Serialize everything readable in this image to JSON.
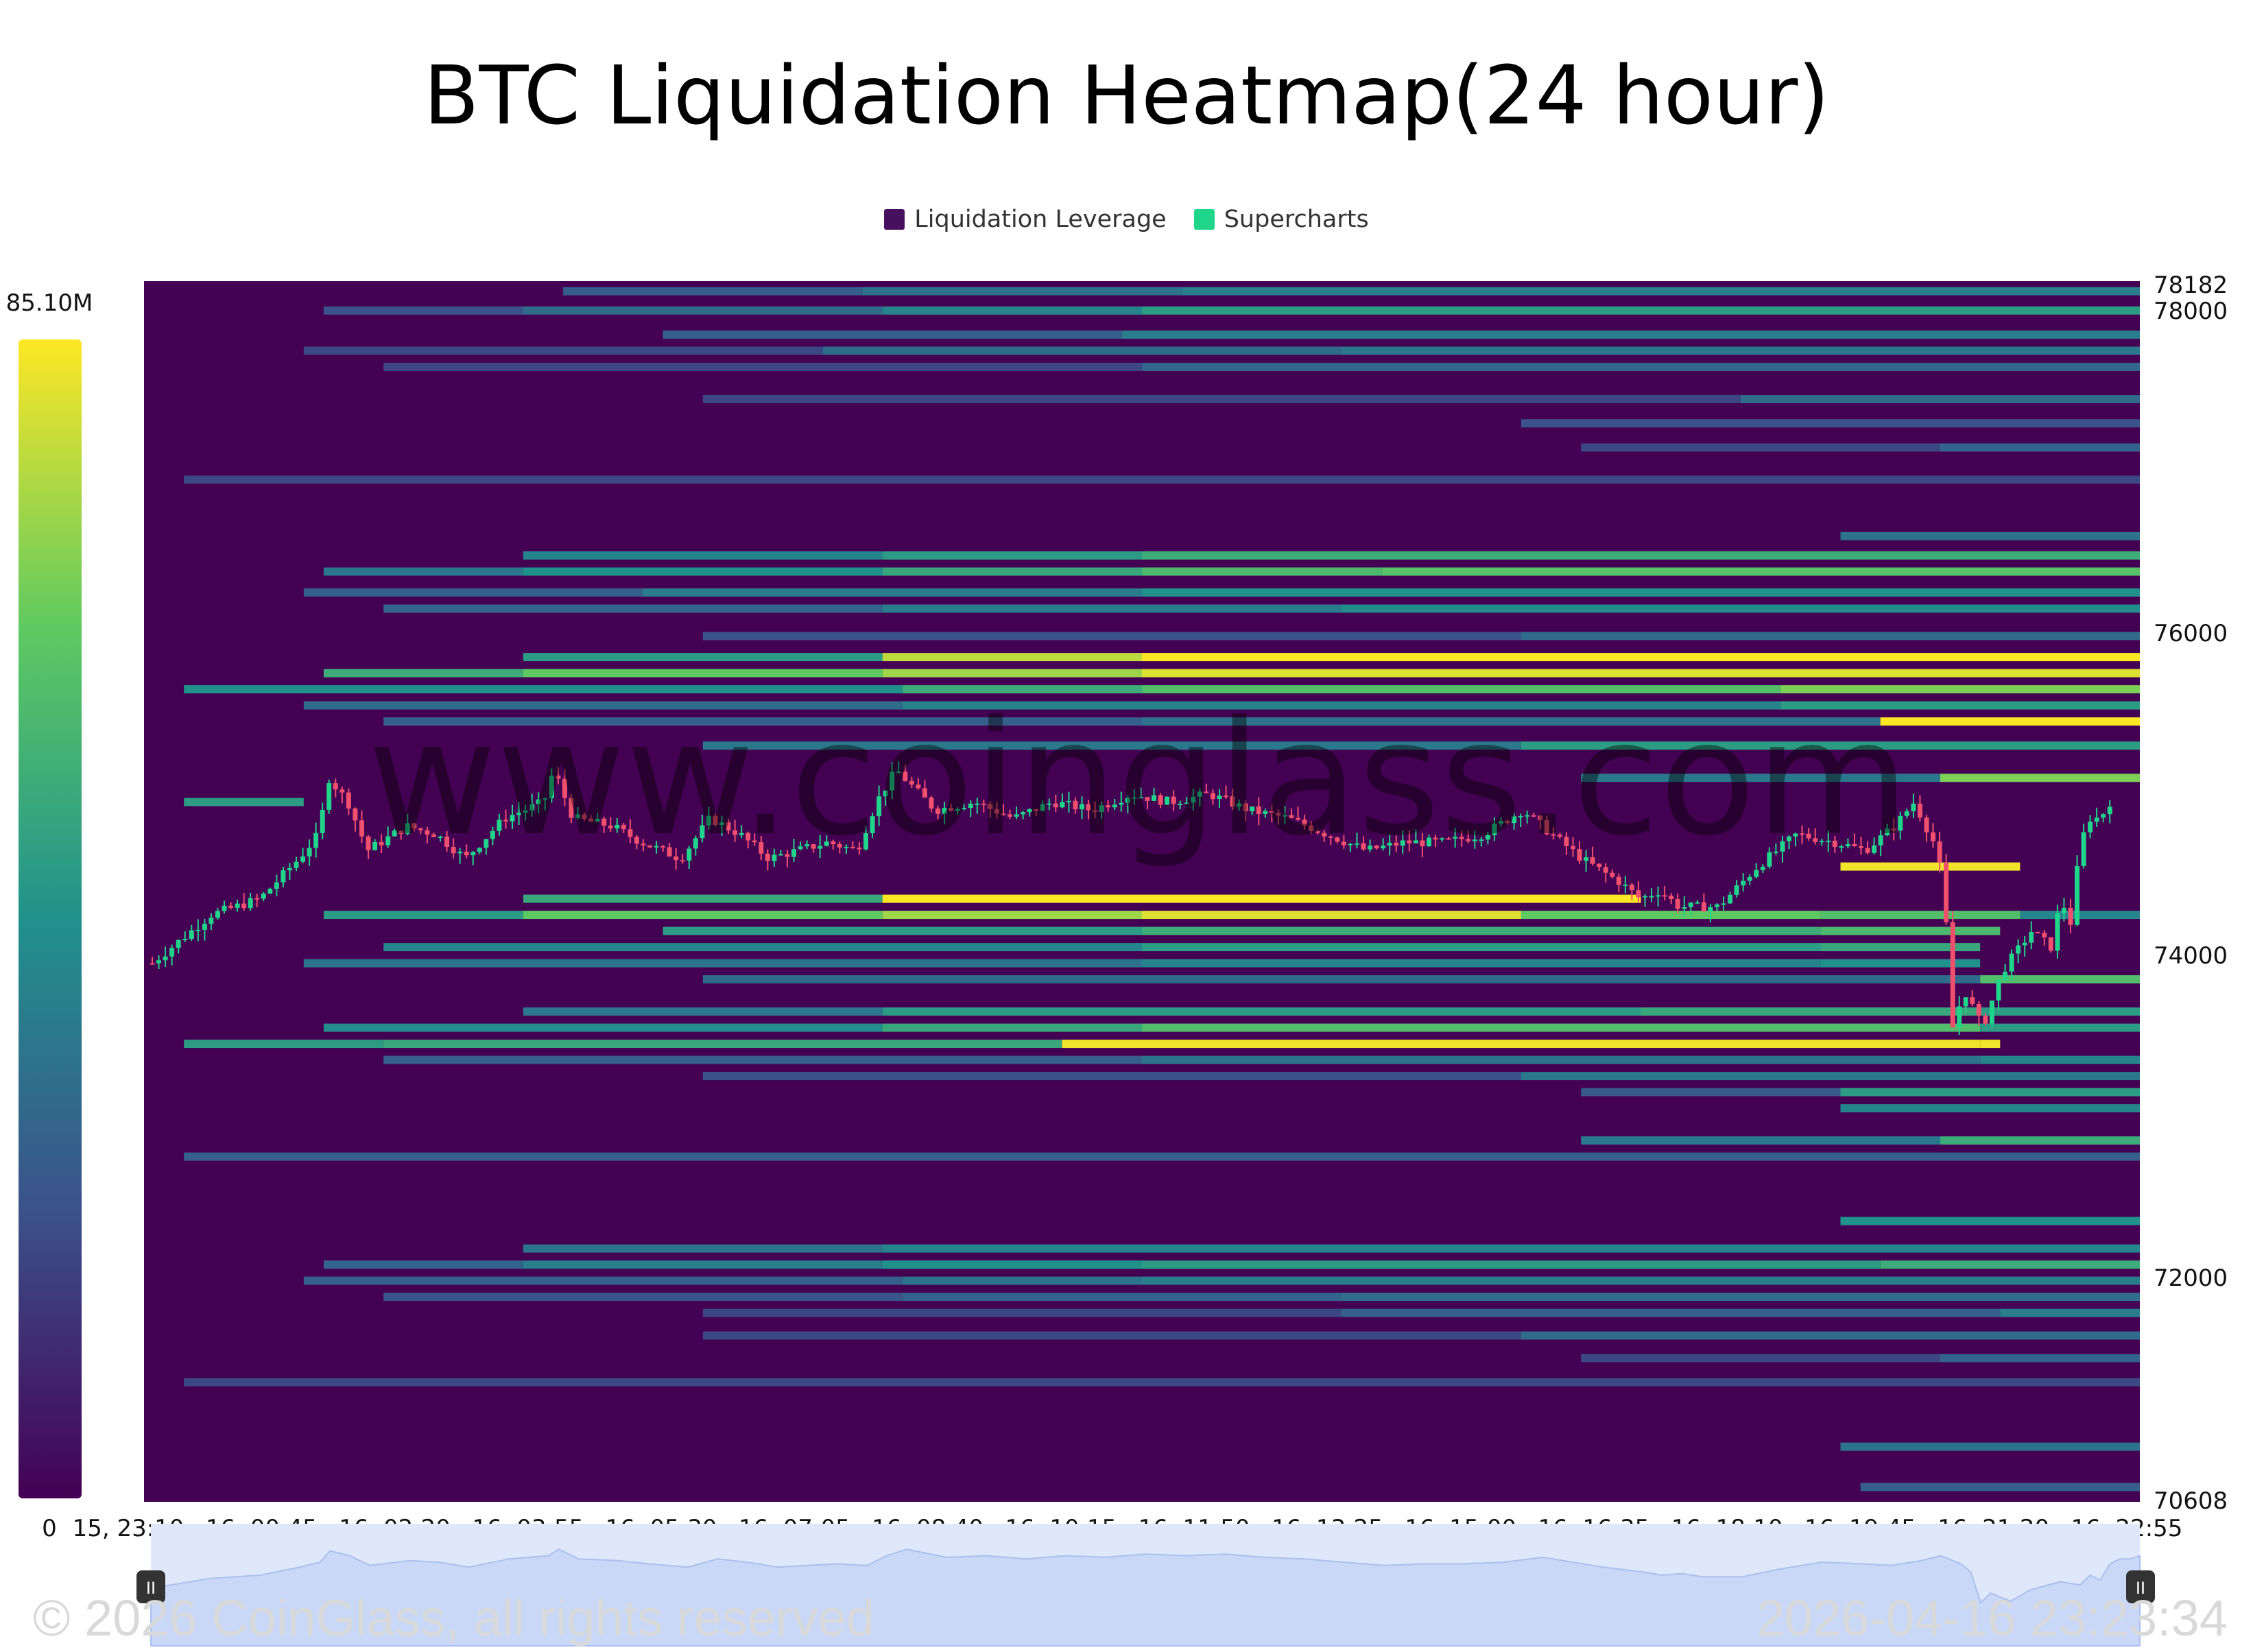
{
  "chart_data": {
    "type": "heatmap",
    "title": "BTC Liquidation Heatmap(24 hour)",
    "legend": [
      {
        "label": "Liquidation Leverage",
        "color": "#46105f"
      },
      {
        "label": "Supercharts",
        "color": "#1fd58a"
      }
    ],
    "colorscale": {
      "min_label": "0",
      "max_label": "85.10M",
      "min": 0,
      "max": 85.1,
      "colors": [
        "#440154",
        "#3b528b",
        "#21918c",
        "#5ec962",
        "#fde725"
      ]
    },
    "y_axis": {
      "min": 70608,
      "max": 78182,
      "tick_labels": [
        "78182",
        "78000",
        "76000",
        "74000",
        "72000",
        "70608"
      ],
      "tick_values": [
        78182,
        78000,
        76000,
        74000,
        72000,
        70608
      ]
    },
    "x_axis": {
      "tick_labels": [
        "15, 23:10",
        "16, 00:45",
        "16, 02:20",
        "16, 03:55",
        "16, 05:30",
        "16, 07:05",
        "16, 08:40",
        "16, 10:15",
        "16, 11:50",
        "16, 13:25",
        "16, 15:00",
        "16, 16:35",
        "16, 18:10",
        "16, 19:45",
        "16, 21:20",
        "16, 22:55"
      ],
      "range": [
        "15, 23:10",
        "16, 23:23"
      ]
    },
    "bands": [
      {
        "price": 78120,
        "intensity": [
          [
            0.21,
            0.36,
            0.3
          ],
          [
            0.36,
            0.52,
            0.38
          ],
          [
            0.52,
            1.0,
            0.42
          ]
        ]
      },
      {
        "price": 78000,
        "intensity": [
          [
            0.09,
            0.19,
            0.25
          ],
          [
            0.19,
            0.37,
            0.35
          ],
          [
            0.37,
            0.5,
            0.45
          ],
          [
            0.5,
            1.0,
            0.55
          ]
        ]
      },
      {
        "price": 77850,
        "intensity": [
          [
            0.26,
            0.49,
            0.3
          ],
          [
            0.49,
            1.0,
            0.42
          ]
        ]
      },
      {
        "price": 77750,
        "intensity": [
          [
            0.08,
            0.34,
            0.22
          ],
          [
            0.34,
            0.6,
            0.35
          ],
          [
            0.6,
            1.0,
            0.4
          ]
        ]
      },
      {
        "price": 77650,
        "intensity": [
          [
            0.12,
            0.5,
            0.22
          ],
          [
            0.5,
            1.0,
            0.33
          ]
        ]
      },
      {
        "price": 77450,
        "intensity": [
          [
            0.28,
            0.8,
            0.22
          ],
          [
            0.8,
            1.0,
            0.35
          ]
        ]
      },
      {
        "price": 77300,
        "intensity": [
          [
            0.69,
            1.0,
            0.25
          ]
        ]
      },
      {
        "price": 77150,
        "intensity": [
          [
            0.72,
            0.9,
            0.22
          ],
          [
            0.9,
            1.0,
            0.32
          ]
        ]
      },
      {
        "price": 76950,
        "intensity": [
          [
            0.02,
            1.0,
            0.22
          ]
        ]
      },
      {
        "price": 76600,
        "intensity": [
          [
            0.85,
            1.0,
            0.38
          ]
        ]
      },
      {
        "price": 76480,
        "intensity": [
          [
            0.19,
            0.37,
            0.45
          ],
          [
            0.37,
            0.5,
            0.55
          ],
          [
            0.5,
            1.0,
            0.62
          ]
        ]
      },
      {
        "price": 76380,
        "intensity": [
          [
            0.09,
            0.19,
            0.4
          ],
          [
            0.19,
            0.37,
            0.5
          ],
          [
            0.37,
            0.5,
            0.6
          ],
          [
            0.5,
            0.62,
            0.68
          ],
          [
            0.62,
            1.0,
            0.72
          ]
        ]
      },
      {
        "price": 76250,
        "intensity": [
          [
            0.08,
            0.25,
            0.3
          ],
          [
            0.25,
            0.5,
            0.42
          ],
          [
            0.5,
            1.0,
            0.5
          ]
        ]
      },
      {
        "price": 76150,
        "intensity": [
          [
            0.12,
            0.37,
            0.32
          ],
          [
            0.37,
            0.6,
            0.42
          ],
          [
            0.6,
            1.0,
            0.48
          ]
        ]
      },
      {
        "price": 75980,
        "intensity": [
          [
            0.28,
            0.69,
            0.25
          ],
          [
            0.69,
            1.0,
            0.35
          ]
        ]
      },
      {
        "price": 75850,
        "intensity": [
          [
            0.19,
            0.37,
            0.55
          ],
          [
            0.37,
            0.5,
            0.9
          ],
          [
            0.5,
            0.75,
            1.0
          ],
          [
            0.75,
            1.0,
            1.0
          ]
        ]
      },
      {
        "price": 75750,
        "intensity": [
          [
            0.09,
            0.19,
            0.62
          ],
          [
            0.19,
            0.37,
            0.75
          ],
          [
            0.37,
            0.5,
            0.85
          ],
          [
            0.5,
            1.0,
            0.95
          ]
        ]
      },
      {
        "price": 75650,
        "intensity": [
          [
            0.02,
            0.38,
            0.5
          ],
          [
            0.38,
            0.5,
            0.62
          ],
          [
            0.5,
            0.82,
            0.7
          ],
          [
            0.82,
            1.0,
            0.8
          ]
        ]
      },
      {
        "price": 75550,
        "intensity": [
          [
            0.08,
            0.38,
            0.35
          ],
          [
            0.38,
            0.82,
            0.45
          ],
          [
            0.82,
            1.0,
            0.55
          ]
        ]
      },
      {
        "price": 75450,
        "intensity": [
          [
            0.12,
            0.5,
            0.3
          ],
          [
            0.5,
            0.87,
            0.38
          ],
          [
            0.87,
            1.0,
            1.0
          ]
        ]
      },
      {
        "price": 75300,
        "intensity": [
          [
            0.28,
            0.69,
            0.4
          ],
          [
            0.69,
            1.0,
            0.55
          ]
        ]
      },
      {
        "price": 75100,
        "intensity": [
          [
            0.72,
            0.9,
            0.4
          ],
          [
            0.9,
            1.0,
            0.8
          ]
        ]
      },
      {
        "price": 74950,
        "intensity": [
          [
            0.02,
            0.08,
            0.55
          ]
        ]
      },
      {
        "price": 74550,
        "intensity": [
          [
            0.85,
            0.94,
            0.98
          ]
        ]
      },
      {
        "price": 74350,
        "intensity": [
          [
            0.19,
            0.37,
            0.6
          ],
          [
            0.37,
            0.75,
            1.0
          ]
        ]
      },
      {
        "price": 74250,
        "intensity": [
          [
            0.09,
            0.19,
            0.55
          ],
          [
            0.19,
            0.37,
            0.75
          ],
          [
            0.37,
            0.5,
            0.85
          ],
          [
            0.5,
            0.69,
            0.95
          ],
          [
            0.69,
            0.84,
            0.75
          ],
          [
            0.84,
            0.94,
            0.7
          ],
          [
            0.94,
            1.0,
            0.45
          ]
        ]
      },
      {
        "price": 74150,
        "intensity": [
          [
            0.26,
            0.5,
            0.55
          ],
          [
            0.5,
            0.84,
            0.62
          ],
          [
            0.84,
            0.93,
            0.68
          ]
        ]
      },
      {
        "price": 74050,
        "intensity": [
          [
            0.12,
            0.5,
            0.45
          ],
          [
            0.5,
            0.84,
            0.55
          ],
          [
            0.84,
            0.92,
            0.6
          ]
        ]
      },
      {
        "price": 73950,
        "intensity": [
          [
            0.08,
            0.5,
            0.38
          ],
          [
            0.5,
            0.84,
            0.45
          ],
          [
            0.84,
            0.92,
            0.5
          ]
        ]
      },
      {
        "price": 73850,
        "intensity": [
          [
            0.28,
            0.92,
            0.35
          ],
          [
            0.92,
            1.0,
            0.7
          ]
        ]
      },
      {
        "price": 73650,
        "intensity": [
          [
            0.19,
            0.37,
            0.4
          ],
          [
            0.37,
            0.75,
            0.55
          ],
          [
            0.75,
            0.92,
            0.6
          ],
          [
            0.92,
            1.0,
            0.55
          ]
        ]
      },
      {
        "price": 73550,
        "intensity": [
          [
            0.09,
            0.37,
            0.48
          ],
          [
            0.37,
            0.5,
            0.6
          ],
          [
            0.5,
            0.92,
            0.7
          ],
          [
            0.92,
            1.0,
            0.55
          ]
        ]
      },
      {
        "price": 73450,
        "intensity": [
          [
            0.02,
            0.12,
            0.55
          ],
          [
            0.12,
            0.46,
            0.6
          ],
          [
            0.46,
            0.92,
            0.98
          ],
          [
            0.92,
            0.93,
            0.98
          ]
        ]
      },
      {
        "price": 73350,
        "intensity": [
          [
            0.12,
            0.5,
            0.3
          ],
          [
            0.5,
            0.92,
            0.38
          ],
          [
            0.92,
            1.0,
            0.45
          ]
        ]
      },
      {
        "price": 73250,
        "intensity": [
          [
            0.28,
            0.69,
            0.25
          ],
          [
            0.69,
            1.0,
            0.4
          ]
        ]
      },
      {
        "price": 73150,
        "intensity": [
          [
            0.72,
            0.85,
            0.28
          ],
          [
            0.85,
            1.0,
            0.55
          ]
        ]
      },
      {
        "price": 73050,
        "intensity": [
          [
            0.85,
            1.0,
            0.45
          ]
        ]
      },
      {
        "price": 72850,
        "intensity": [
          [
            0.72,
            0.9,
            0.4
          ],
          [
            0.9,
            1.0,
            0.62
          ]
        ]
      },
      {
        "price": 72750,
        "intensity": [
          [
            0.02,
            1.0,
            0.3
          ]
        ]
      },
      {
        "price": 72350,
        "intensity": [
          [
            0.85,
            1.0,
            0.5
          ]
        ]
      },
      {
        "price": 72180,
        "intensity": [
          [
            0.19,
            0.37,
            0.38
          ],
          [
            0.37,
            1.0,
            0.45
          ]
        ]
      },
      {
        "price": 72080,
        "intensity": [
          [
            0.09,
            0.19,
            0.32
          ],
          [
            0.19,
            0.37,
            0.42
          ],
          [
            0.37,
            0.5,
            0.5
          ],
          [
            0.5,
            0.87,
            0.55
          ],
          [
            0.87,
            1.0,
            0.62
          ]
        ]
      },
      {
        "price": 71980,
        "intensity": [
          [
            0.08,
            0.38,
            0.3
          ],
          [
            0.38,
            0.5,
            0.38
          ],
          [
            0.5,
            1.0,
            0.42
          ]
        ]
      },
      {
        "price": 71880,
        "intensity": [
          [
            0.12,
            0.38,
            0.26
          ],
          [
            0.38,
            0.6,
            0.32
          ],
          [
            0.6,
            1.0,
            0.36
          ]
        ]
      },
      {
        "price": 71780,
        "intensity": [
          [
            0.28,
            0.6,
            0.22
          ],
          [
            0.6,
            0.93,
            0.3
          ],
          [
            0.93,
            1.0,
            0.42
          ]
        ]
      },
      {
        "price": 71640,
        "intensity": [
          [
            0.28,
            0.69,
            0.22
          ],
          [
            0.69,
            1.0,
            0.35
          ]
        ]
      },
      {
        "price": 71500,
        "intensity": [
          [
            0.72,
            0.9,
            0.22
          ],
          [
            0.9,
            1.0,
            0.32
          ]
        ]
      },
      {
        "price": 71350,
        "intensity": [
          [
            0.02,
            1.0,
            0.22
          ]
        ]
      },
      {
        "price": 70950,
        "intensity": [
          [
            0.85,
            1.0,
            0.38
          ]
        ]
      },
      {
        "price": 70700,
        "intensity": [
          [
            0.86,
            1.0,
            0.3
          ]
        ]
      }
    ],
    "candles": {
      "start_price": 73950,
      "keypoints": [
        [
          0.0,
          73950
        ],
        [
          0.03,
          74250
        ],
        [
          0.055,
          74350
        ],
        [
          0.075,
          74600
        ],
        [
          0.085,
          74750
        ],
        [
          0.09,
          75100
        ],
        [
          0.1,
          74950
        ],
        [
          0.11,
          74650
        ],
        [
          0.13,
          74800
        ],
        [
          0.145,
          74750
        ],
        [
          0.16,
          74600
        ],
        [
          0.18,
          74850
        ],
        [
          0.2,
          74950
        ],
        [
          0.205,
          75150
        ],
        [
          0.215,
          74850
        ],
        [
          0.235,
          74800
        ],
        [
          0.25,
          74700
        ],
        [
          0.27,
          74600
        ],
        [
          0.285,
          74850
        ],
        [
          0.3,
          74750
        ],
        [
          0.315,
          74600
        ],
        [
          0.33,
          74650
        ],
        [
          0.345,
          74700
        ],
        [
          0.36,
          74650
        ],
        [
          0.37,
          74950
        ],
        [
          0.38,
          75150
        ],
        [
          0.4,
          74900
        ],
        [
          0.42,
          74950
        ],
        [
          0.44,
          74850
        ],
        [
          0.46,
          74950
        ],
        [
          0.48,
          74900
        ],
        [
          0.5,
          75000
        ],
        [
          0.52,
          74950
        ],
        [
          0.54,
          75000
        ],
        [
          0.56,
          74900
        ],
        [
          0.58,
          74850
        ],
        [
          0.6,
          74750
        ],
        [
          0.62,
          74650
        ],
        [
          0.64,
          74700
        ],
        [
          0.66,
          74700
        ],
        [
          0.68,
          74750
        ],
        [
          0.7,
          74900
        ],
        [
          0.71,
          74800
        ],
        [
          0.73,
          74600
        ],
        [
          0.75,
          74450
        ],
        [
          0.76,
          74350
        ],
        [
          0.77,
          74400
        ],
        [
          0.78,
          74300
        ],
        [
          0.8,
          74300
        ],
        [
          0.82,
          74550
        ],
        [
          0.84,
          74750
        ],
        [
          0.86,
          74700
        ],
        [
          0.875,
          74650
        ],
        [
          0.89,
          74800
        ],
        [
          0.9,
          74950
        ],
        [
          0.91,
          74700
        ],
        [
          0.915,
          74450
        ],
        [
          0.92,
          73500
        ],
        [
          0.925,
          73800
        ],
        [
          0.935,
          73550
        ],
        [
          0.945,
          73900
        ],
        [
          0.96,
          74150
        ],
        [
          0.97,
          74050
        ],
        [
          0.975,
          74350
        ],
        [
          0.98,
          74200
        ],
        [
          0.985,
          74700
        ],
        [
          0.99,
          74850
        ],
        [
          0.995,
          74850
        ],
        [
          1.0,
          74950
        ]
      ],
      "keypoints_tail": [
        [
          0.0,
          74950
        ],
        [
          0.15,
          74650
        ],
        [
          0.3,
          74350
        ],
        [
          0.5,
          74150
        ],
        [
          0.7,
          73950
        ],
        [
          0.85,
          74050
        ],
        [
          1.0,
          74200
        ]
      ]
    }
  },
  "footer": {
    "copyright": "© 2026 CoinGlass, all rights reserved",
    "timestamp": "2026-04-16 23:23:34",
    "watermark": "www.coinglass.com"
  }
}
